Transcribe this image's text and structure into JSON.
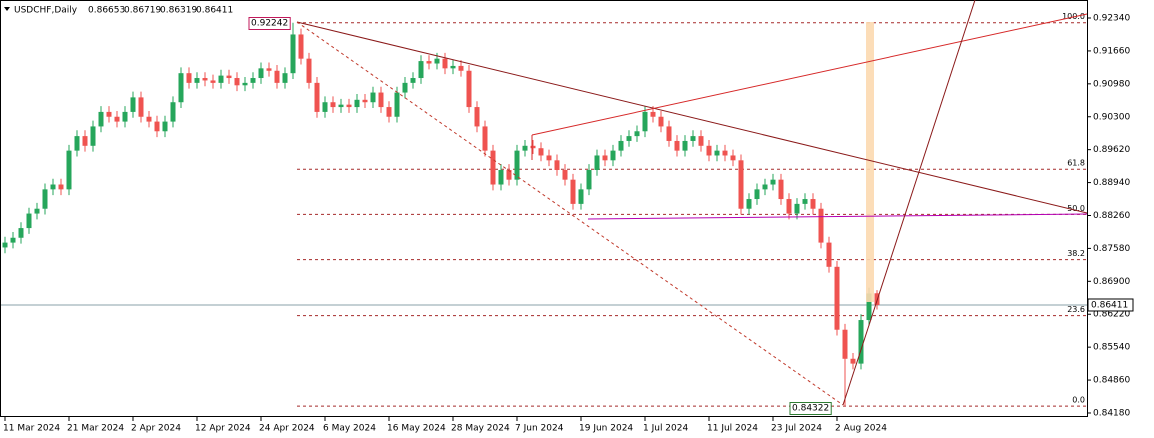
{
  "chart_data": {
    "type": "candlestick",
    "title": "USDCHF,Daily",
    "up_color": "#26a65b",
    "down_color": "#ef5350",
    "categories": [
      "11 Mar 2024",
      null,
      null,
      null,
      null,
      null,
      null,
      null,
      "21 Mar 2024",
      null,
      null,
      null,
      null,
      null,
      null,
      null,
      "2 Apr 2024",
      null,
      null,
      null,
      null,
      null,
      null,
      null,
      "12 Apr 2024",
      null,
      null,
      null,
      null,
      null,
      null,
      null,
      "24 Apr 2024",
      null,
      null,
      null,
      null,
      null,
      null,
      null,
      "6 May 2024",
      null,
      null,
      null,
      null,
      null,
      null,
      null,
      "16 May 2024",
      null,
      null,
      null,
      null,
      null,
      null,
      null,
      "28 May 2024",
      null,
      null,
      null,
      null,
      null,
      null,
      null,
      "7 Jun 2024",
      null,
      null,
      null,
      null,
      null,
      null,
      null,
      "19 Jun 2024",
      null,
      null,
      null,
      null,
      null,
      null,
      null,
      "1 Jul 2024",
      null,
      null,
      null,
      null,
      null,
      null,
      null,
      "11 Jul 2024",
      null,
      null,
      null,
      null,
      null,
      null,
      null,
      "23 Jul 2024",
      null,
      null,
      null,
      null,
      null,
      null,
      null,
      "2 Aug 2024",
      null,
      null,
      null,
      null,
      null
    ],
    "open": [
      0.876,
      0.877,
      0.878,
      0.88,
      0.883,
      0.884,
      0.888,
      0.889,
      0.888,
      0.896,
      0.899,
      0.897,
      0.901,
      0.904,
      0.903,
      0.902,
      0.904,
      0.907,
      0.903,
      0.902,
      0.9,
      0.902,
      0.906,
      0.912,
      0.91,
      0.911,
      0.9105,
      0.91,
      0.9115,
      0.911,
      0.9095,
      0.91,
      0.911,
      0.913,
      0.9125,
      0.91,
      0.912,
      0.92,
      0.915,
      0.91,
      0.904,
      0.906,
      0.905,
      0.9055,
      0.905,
      0.9065,
      0.906,
      0.908,
      0.905,
      0.903,
      0.908,
      0.91,
      0.911,
      0.9145,
      0.914,
      0.915,
      0.913,
      0.9135,
      0.9125,
      0.905,
      0.901,
      0.896,
      0.889,
      0.892,
      0.89,
      0.896,
      0.897,
      0.8965,
      0.895,
      0.894,
      0.892,
      0.89,
      0.885,
      0.888,
      0.892,
      0.895,
      0.894,
      0.896,
      0.898,
      0.899,
      0.9,
      0.904,
      0.903,
      0.901,
      0.898,
      0.896,
      0.898,
      0.899,
      0.897,
      0.895,
      0.896,
      0.895,
      0.894,
      0.884,
      0.886,
      0.888,
      0.889,
      0.89,
      0.886,
      0.883,
      0.885,
      0.886,
      0.884,
      0.877,
      0.872,
      0.859,
      0.853,
      0.852,
      0.861,
      0.86653
    ],
    "high": [
      0.8782,
      0.8792,
      0.8812,
      0.8842,
      0.8852,
      0.8892,
      0.8902,
      0.8902,
      0.8972,
      0.9002,
      0.9002,
      0.9022,
      0.9052,
      0.9052,
      0.9042,
      0.9052,
      0.9082,
      0.9082,
      0.9042,
      0.9032,
      0.9032,
      0.9072,
      0.9132,
      0.9132,
      0.9122,
      0.9122,
      0.9117,
      0.9127,
      0.9127,
      0.9122,
      0.9112,
      0.9122,
      0.9142,
      0.9142,
      0.9137,
      0.9132,
      0.92242,
      0.9212,
      0.9162,
      0.9112,
      0.9072,
      0.9072,
      0.9067,
      0.9067,
      0.9077,
      0.9077,
      0.9092,
      0.9092,
      0.9062,
      0.9092,
      0.9112,
      0.9122,
      0.9157,
      0.9157,
      0.9162,
      0.9162,
      0.9147,
      0.9147,
      0.9137,
      0.9062,
      0.9022,
      0.8972,
      0.8932,
      0.8932,
      0.8972,
      0.8982,
      0.8982,
      0.8977,
      0.8962,
      0.8952,
      0.8932,
      0.8912,
      0.8892,
      0.8932,
      0.8962,
      0.8962,
      0.8972,
      0.8992,
      0.9002,
      0.9012,
      0.9052,
      0.9052,
      0.9042,
      0.9022,
      0.8992,
      0.8992,
      0.9002,
      0.9002,
      0.8982,
      0.8972,
      0.8972,
      0.8962,
      0.8952,
      0.8872,
      0.8892,
      0.8902,
      0.8912,
      0.8912,
      0.8872,
      0.8862,
      0.8872,
      0.8872,
      0.8852,
      0.8782,
      0.8732,
      0.8602,
      0.8542,
      0.8622,
      0.8677,
      0.86719
    ],
    "low": [
      0.8748,
      0.8758,
      0.8768,
      0.8788,
      0.8818,
      0.8828,
      0.8868,
      0.8868,
      0.8868,
      0.8948,
      0.8958,
      0.8958,
      0.8998,
      0.9018,
      0.9008,
      0.9008,
      0.9028,
      0.9018,
      0.9008,
      0.8988,
      0.8988,
      0.9008,
      0.9048,
      0.9088,
      0.9088,
      0.9093,
      0.9088,
      0.9088,
      0.9098,
      0.9083,
      0.9083,
      0.9088,
      0.9098,
      0.9113,
      0.9088,
      0.9088,
      0.9108,
      0.9138,
      0.9088,
      0.9028,
      0.9028,
      0.9038,
      0.9038,
      0.9038,
      0.9038,
      0.9048,
      0.9048,
      0.9038,
      0.9018,
      0.9018,
      0.9068,
      0.9088,
      0.9098,
      0.9128,
      0.9128,
      0.9118,
      0.9118,
      0.9113,
      0.9038,
      0.8998,
      0.8948,
      0.8878,
      0.8878,
      0.8888,
      0.8888,
      0.8948,
      0.8953,
      0.8938,
      0.8928,
      0.8908,
      0.8888,
      0.8838,
      0.8838,
      0.8868,
      0.8908,
      0.8928,
      0.8928,
      0.8948,
      0.8968,
      0.8978,
      0.8988,
      0.9018,
      0.8998,
      0.8968,
      0.8948,
      0.8948,
      0.8968,
      0.8958,
      0.8938,
      0.8938,
      0.8938,
      0.8928,
      0.8828,
      0.8828,
      0.8848,
      0.8868,
      0.8878,
      0.8848,
      0.8818,
      0.8818,
      0.8838,
      0.8828,
      0.8758,
      0.8708,
      0.8578,
      0.84322,
      0.8508,
      0.8508,
      0.8598,
      0.86319
    ],
    "close": [
      0.877,
      0.878,
      0.88,
      0.883,
      0.884,
      0.888,
      0.889,
      0.888,
      0.896,
      0.899,
      0.897,
      0.901,
      0.904,
      0.903,
      0.902,
      0.904,
      0.907,
      0.903,
      0.902,
      0.9,
      0.902,
      0.906,
      0.912,
      0.91,
      0.911,
      0.9105,
      0.91,
      0.9115,
      0.911,
      0.9095,
      0.91,
      0.911,
      0.913,
      0.9125,
      0.91,
      0.912,
      0.92,
      0.915,
      0.91,
      0.904,
      0.906,
      0.905,
      0.9055,
      0.905,
      0.9065,
      0.906,
      0.908,
      0.905,
      0.903,
      0.908,
      0.91,
      0.911,
      0.9145,
      0.914,
      0.915,
      0.913,
      0.9135,
      0.9125,
      0.905,
      0.901,
      0.896,
      0.889,
      0.892,
      0.89,
      0.896,
      0.897,
      0.8965,
      0.895,
      0.894,
      0.892,
      0.89,
      0.885,
      0.888,
      0.892,
      0.895,
      0.894,
      0.896,
      0.898,
      0.899,
      0.9,
      0.904,
      0.903,
      0.901,
      0.898,
      0.896,
      0.898,
      0.899,
      0.897,
      0.895,
      0.896,
      0.895,
      0.894,
      0.884,
      0.886,
      0.888,
      0.889,
      0.89,
      0.886,
      0.883,
      0.885,
      0.886,
      0.884,
      0.877,
      0.872,
      0.859,
      0.853,
      0.852,
      0.861,
      0.8665,
      0.86411
    ],
    "ylim": [
      0.84097,
      0.92712
    ],
    "yticks": [
      {
        "value": 0.9234,
        "label": "0.92340"
      },
      {
        "value": 0.9166,
        "label": "0.91660"
      },
      {
        "value": 0.9098,
        "label": "0.90980"
      },
      {
        "value": 0.903,
        "label": "0.90300"
      },
      {
        "value": 0.8962,
        "label": "0.89620"
      },
      {
        "value": 0.8894,
        "label": "0.88940"
      },
      {
        "value": 0.8826,
        "label": "0.88260"
      },
      {
        "value": 0.8758,
        "label": "0.87580"
      },
      {
        "value": 0.869,
        "label": "0.86900"
      },
      {
        "value": 0.8622,
        "label": "0.86220"
      },
      {
        "value": 0.8554,
        "label": "0.85540"
      },
      {
        "value": 0.8486,
        "label": "0.84860"
      },
      {
        "value": 0.8418,
        "label": "0.84180"
      }
    ],
    "fib_levels": [
      {
        "value": 100,
        "label": "100.0"
      },
      {
        "value": 61.8,
        "label": "61.8"
      },
      {
        "value": 50,
        "label": "50.0"
      },
      {
        "value": 38.2,
        "label": "38.2"
      },
      {
        "value": 23.6,
        "label": "23.6"
      },
      {
        "value": 0,
        "label": "0.0"
      }
    ]
  }
}
